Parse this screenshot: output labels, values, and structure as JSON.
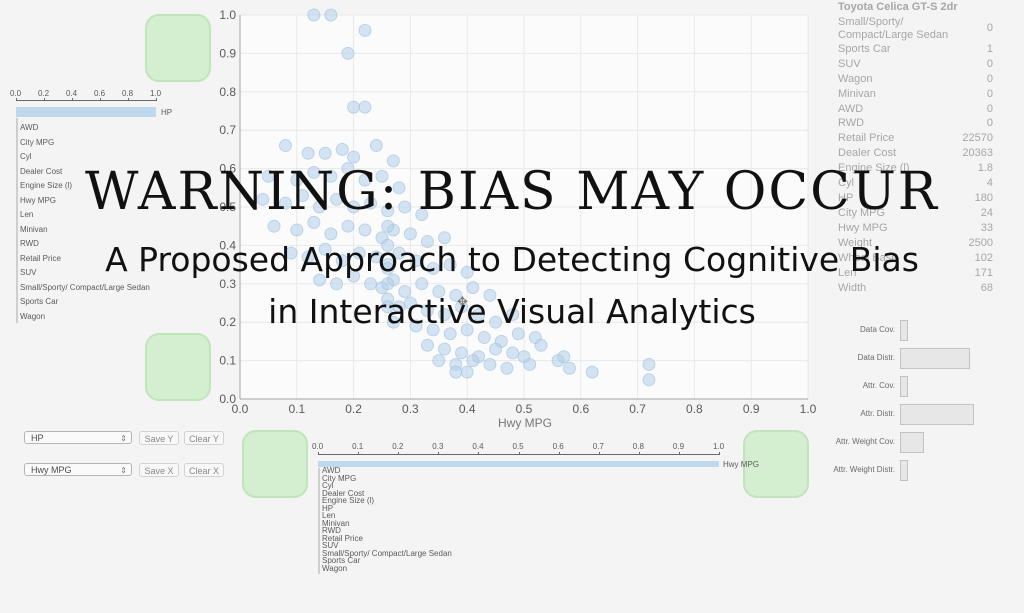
{
  "scatter": {
    "xlabel": "Hwy MPG",
    "ticks": [
      "0.0",
      "0.1",
      "0.2",
      "0.3",
      "0.4",
      "0.5",
      "0.6",
      "0.7",
      "0.8",
      "0.9",
      "1.0"
    ],
    "points": [
      [
        0.13,
        1.0
      ],
      [
        0.16,
        1.0
      ],
      [
        0.22,
        0.96
      ],
      [
        0.19,
        0.9
      ],
      [
        0.2,
        0.76
      ],
      [
        0.22,
        0.76
      ],
      [
        0.08,
        0.66
      ],
      [
        0.12,
        0.64
      ],
      [
        0.15,
        0.64
      ],
      [
        0.18,
        0.65
      ],
      [
        0.2,
        0.63
      ],
      [
        0.24,
        0.66
      ],
      [
        0.27,
        0.62
      ],
      [
        0.05,
        0.58
      ],
      [
        0.1,
        0.57
      ],
      [
        0.13,
        0.59
      ],
      [
        0.16,
        0.58
      ],
      [
        0.19,
        0.6
      ],
      [
        0.22,
        0.57
      ],
      [
        0.25,
        0.58
      ],
      [
        0.28,
        0.55
      ],
      [
        0.04,
        0.52
      ],
      [
        0.08,
        0.51
      ],
      [
        0.11,
        0.53
      ],
      [
        0.14,
        0.5
      ],
      [
        0.17,
        0.52
      ],
      [
        0.2,
        0.5
      ],
      [
        0.23,
        0.51
      ],
      [
        0.26,
        0.49
      ],
      [
        0.29,
        0.5
      ],
      [
        0.32,
        0.48
      ],
      [
        0.06,
        0.45
      ],
      [
        0.1,
        0.44
      ],
      [
        0.13,
        0.46
      ],
      [
        0.16,
        0.43
      ],
      [
        0.19,
        0.45
      ],
      [
        0.22,
        0.44
      ],
      [
        0.25,
        0.42
      ],
      [
        0.27,
        0.44
      ],
      [
        0.3,
        0.43
      ],
      [
        0.33,
        0.41
      ],
      [
        0.36,
        0.42
      ],
      [
        0.09,
        0.38
      ],
      [
        0.12,
        0.37
      ],
      [
        0.15,
        0.39
      ],
      [
        0.18,
        0.36
      ],
      [
        0.21,
        0.38
      ],
      [
        0.24,
        0.37
      ],
      [
        0.26,
        0.35
      ],
      [
        0.28,
        0.38
      ],
      [
        0.31,
        0.36
      ],
      [
        0.34,
        0.34
      ],
      [
        0.37,
        0.35
      ],
      [
        0.4,
        0.33
      ],
      [
        0.14,
        0.31
      ],
      [
        0.17,
        0.3
      ],
      [
        0.2,
        0.32
      ],
      [
        0.23,
        0.3
      ],
      [
        0.25,
        0.29
      ],
      [
        0.27,
        0.31
      ],
      [
        0.29,
        0.28
      ],
      [
        0.32,
        0.3
      ],
      [
        0.35,
        0.28
      ],
      [
        0.38,
        0.27
      ],
      [
        0.41,
        0.29
      ],
      [
        0.44,
        0.27
      ],
      [
        0.26,
        0.26
      ],
      [
        0.28,
        0.24
      ],
      [
        0.3,
        0.25
      ],
      [
        0.33,
        0.23
      ],
      [
        0.36,
        0.22
      ],
      [
        0.39,
        0.24
      ],
      [
        0.42,
        0.22
      ],
      [
        0.45,
        0.2
      ],
      [
        0.48,
        0.22
      ],
      [
        0.27,
        0.2
      ],
      [
        0.31,
        0.19
      ],
      [
        0.34,
        0.18
      ],
      [
        0.37,
        0.17
      ],
      [
        0.4,
        0.18
      ],
      [
        0.43,
        0.16
      ],
      [
        0.46,
        0.15
      ],
      [
        0.49,
        0.17
      ],
      [
        0.52,
        0.16
      ],
      [
        0.33,
        0.14
      ],
      [
        0.36,
        0.13
      ],
      [
        0.39,
        0.12
      ],
      [
        0.42,
        0.11
      ],
      [
        0.45,
        0.13
      ],
      [
        0.48,
        0.12
      ],
      [
        0.5,
        0.11
      ],
      [
        0.53,
        0.14
      ],
      [
        0.56,
        0.1
      ],
      [
        0.35,
        0.1
      ],
      [
        0.38,
        0.09
      ],
      [
        0.41,
        0.1
      ],
      [
        0.44,
        0.09
      ],
      [
        0.47,
        0.08
      ],
      [
        0.51,
        0.09
      ],
      [
        0.57,
        0.11
      ],
      [
        0.58,
        0.08
      ],
      [
        0.62,
        0.07
      ],
      [
        0.38,
        0.07
      ],
      [
        0.4,
        0.07
      ],
      [
        0.72,
        0.09
      ],
      [
        0.72,
        0.05
      ],
      [
        0.26,
        0.45
      ],
      [
        0.26,
        0.4
      ],
      [
        0.26,
        0.34
      ],
      [
        0.26,
        0.3
      ],
      [
        0.26,
        0.24
      ]
    ]
  },
  "left_bars": {
    "ticks": [
      "0.0",
      "0.2",
      "0.4",
      "0.6",
      "0.8",
      "1.0"
    ],
    "top": {
      "label": "HP",
      "value": 1.0
    },
    "items": [
      "AWD",
      "City MPG",
      "Cyl",
      "Dealer Cost",
      "Engine Size (l)",
      "Hwy MPG",
      "Len",
      "Minivan",
      "RWD",
      "Retail Price",
      "SUV",
      "Small/Sporty/ Compact/Large Sedan",
      "Sports Car",
      "Wagon"
    ]
  },
  "bottom_bars": {
    "ticks": [
      "0.0",
      "0.1",
      "0.2",
      "0.3",
      "0.4",
      "0.5",
      "0.6",
      "0.7",
      "0.8",
      "0.9",
      "1.0"
    ],
    "top": {
      "label": "Hwy MPG",
      "value": 1.0
    },
    "items": [
      "AWD",
      "City MPG",
      "Cyl",
      "Dealer Cost",
      "Engine Size (l)",
      "HP",
      "Len",
      "Minivan",
      "RWD",
      "Retail Price",
      "SUV",
      "Small/Sporty/ Compact/Large Sedan",
      "Sports Car",
      "Wagon"
    ]
  },
  "controls": {
    "y_select": "HP",
    "x_select": "Hwy MPG",
    "save_y": "Save Y",
    "clear_y": "Clear Y",
    "save_x": "Save X",
    "clear_x": "Clear X"
  },
  "details": {
    "title": "Toyota Celica GT-S 2dr",
    "rows": [
      {
        "label": "Small/Sporty/ Compact/Large Sedan",
        "value": "0"
      },
      {
        "label": "Sports Car",
        "value": "1"
      },
      {
        "label": "SUV",
        "value": "0"
      },
      {
        "label": "Wagon",
        "value": "0"
      },
      {
        "label": "Minivan",
        "value": "0"
      },
      {
        "label": "AWD",
        "value": "0"
      },
      {
        "label": "RWD",
        "value": "0"
      },
      {
        "label": "Retail Price",
        "value": "22570"
      },
      {
        "label": "Dealer Cost",
        "value": "20363"
      },
      {
        "label": "Engine Size (l)",
        "value": "1.8"
      },
      {
        "label": "Cyl",
        "value": "4"
      },
      {
        "label": "HP",
        "value": "180"
      },
      {
        "label": "City MPG",
        "value": "24"
      },
      {
        "label": "Hwy MPG",
        "value": "33"
      },
      {
        "label": "Weight",
        "value": "2500"
      },
      {
        "label": "Wheel Base",
        "value": "102"
      },
      {
        "label": "Len",
        "value": "171"
      },
      {
        "label": "Width",
        "value": "68"
      }
    ]
  },
  "metrics": [
    {
      "label": "Data Cov.",
      "value": 0.08
    },
    {
      "label": "Data Distr.",
      "value": 0.95
    },
    {
      "label": "Attr. Cov.",
      "value": 0.08
    },
    {
      "label": "Attr. Distr.",
      "value": 1.0
    },
    {
      "label": "Attr. Weight Cov.",
      "value": 0.3
    },
    {
      "label": "Attr. Weight Distr.",
      "value": 0.08
    }
  ],
  "overlay": {
    "title": "WARNING: BIAS MAY OCCUR",
    "subtitle_line1": "A Proposed Approach to Detecting Cognitive Bias",
    "subtitle_line2": "in Interactive Visual Analytics"
  }
}
